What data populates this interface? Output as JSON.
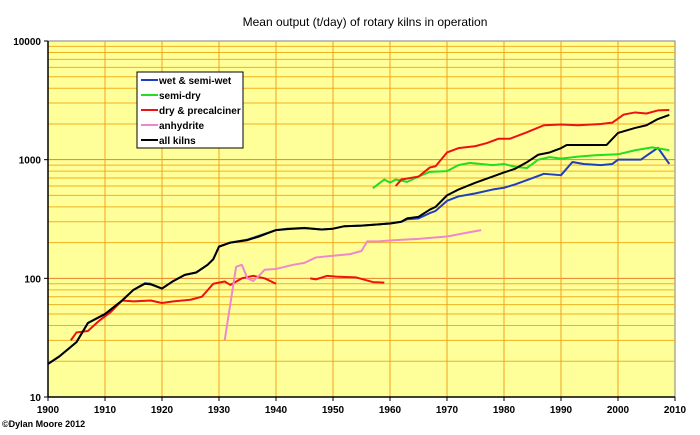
{
  "chart_data": {
    "type": "line",
    "title": "Mean output (t/day) of rotary kilns in operation",
    "xlabel": "",
    "ylabel": "",
    "xlim": [
      1900,
      2010
    ],
    "ylim": [
      10,
      10000
    ],
    "yscale": "log",
    "xticks": [
      "1900",
      "1910",
      "1920",
      "1930",
      "1940",
      "1950",
      "1960",
      "1970",
      "1980",
      "1990",
      "2000",
      "2010"
    ],
    "yticks": [
      "10",
      "100",
      "1000",
      "10000"
    ],
    "grid": true,
    "legend_position": "upper-left inside",
    "background": "#ffff99",
    "series": [
      {
        "name": "wet & semi-wet",
        "color": "#1f3fbf",
        "points": [
          [
            1900,
            19
          ],
          [
            1902,
            22
          ],
          [
            1905,
            29
          ],
          [
            1907,
            42
          ],
          [
            1910,
            50
          ],
          [
            1913,
            65
          ],
          [
            1915,
            80
          ],
          [
            1917,
            91
          ],
          [
            1918,
            90
          ],
          [
            1920,
            82
          ],
          [
            1922,
            95
          ],
          [
            1924,
            107
          ],
          [
            1926,
            112
          ],
          [
            1928,
            130
          ],
          [
            1929,
            145
          ],
          [
            1930,
            185
          ],
          [
            1932,
            200
          ],
          [
            1935,
            212
          ],
          [
            1937,
            228
          ],
          [
            1940,
            255
          ],
          [
            1942,
            262
          ],
          [
            1945,
            266
          ],
          [
            1948,
            258
          ],
          [
            1950,
            262
          ],
          [
            1952,
            275
          ],
          [
            1955,
            278
          ],
          [
            1958,
            285
          ],
          [
            1960,
            290
          ],
          [
            1962,
            300
          ],
          [
            1963,
            315
          ],
          [
            1965,
            320
          ],
          [
            1967,
            355
          ],
          [
            1968,
            370
          ],
          [
            1970,
            450
          ],
          [
            1972,
            490
          ],
          [
            1975,
            520
          ],
          [
            1978,
            560
          ],
          [
            1980,
            580
          ],
          [
            1982,
            620
          ],
          [
            1985,
            700
          ],
          [
            1987,
            760
          ],
          [
            1990,
            740
          ],
          [
            1992,
            955
          ],
          [
            1994,
            920
          ],
          [
            1997,
            900
          ],
          [
            1999,
            920
          ],
          [
            2000,
            1000
          ],
          [
            2004,
            1000
          ],
          [
            2007,
            1260
          ],
          [
            2009,
            920
          ]
        ]
      },
      {
        "name": "semi-dry",
        "color": "#22dd22",
        "points": [
          [
            1957,
            575
          ],
          [
            1959,
            680
          ],
          [
            1960,
            640
          ],
          [
            1961,
            680
          ],
          [
            1963,
            650
          ],
          [
            1965,
            720
          ],
          [
            1967,
            790
          ],
          [
            1970,
            800
          ],
          [
            1972,
            900
          ],
          [
            1974,
            940
          ],
          [
            1976,
            920
          ],
          [
            1978,
            900
          ],
          [
            1980,
            920
          ],
          [
            1982,
            870
          ],
          [
            1984,
            850
          ],
          [
            1986,
            1000
          ],
          [
            1988,
            1050
          ],
          [
            1990,
            1020
          ],
          [
            1993,
            1060
          ],
          [
            1996,
            1090
          ],
          [
            2000,
            1110
          ],
          [
            2003,
            1200
          ],
          [
            2006,
            1270
          ],
          [
            2009,
            1200
          ]
        ]
      },
      {
        "name": "dry & precalciner",
        "color": "#ee1111",
        "segments": [
          [
            [
              1904,
              30
            ],
            [
              1905,
              35
            ],
            [
              1907,
              36
            ],
            [
              1909,
              44
            ],
            [
              1911,
              52
            ],
            [
              1913,
              65
            ],
            [
              1915,
              64
            ],
            [
              1918,
              65
            ],
            [
              1920,
              62
            ],
            [
              1922,
              64
            ],
            [
              1925,
              66
            ],
            [
              1927,
              70
            ],
            [
              1929,
              90
            ],
            [
              1931,
              94
            ],
            [
              1932,
              88
            ],
            [
              1934,
              100
            ],
            [
              1936,
              105
            ],
            [
              1938,
              100
            ],
            [
              1940,
              90
            ]
          ],
          [
            [
              1946,
              100
            ],
            [
              1947,
              98
            ],
            [
              1949,
              105
            ],
            [
              1951,
              103
            ],
            [
              1954,
              102
            ],
            [
              1957,
              93
            ],
            [
              1959,
              92
            ]
          ],
          [
            [
              1961,
              600
            ],
            [
              1962,
              680
            ],
            [
              1965,
              720
            ],
            [
              1967,
              860
            ],
            [
              1968,
              880
            ],
            [
              1970,
              1150
            ],
            [
              1972,
              1250
            ],
            [
              1975,
              1300
            ],
            [
              1977,
              1380
            ],
            [
              1979,
              1500
            ],
            [
              1981,
              1500
            ],
            [
              1984,
              1700
            ],
            [
              1987,
              1950
            ],
            [
              1990,
              1980
            ],
            [
              1993,
              1950
            ],
            [
              1997,
              2000
            ],
            [
              1999,
              2050
            ],
            [
              2001,
              2400
            ],
            [
              2003,
              2500
            ],
            [
              2005,
              2450
            ],
            [
              2007,
              2600
            ],
            [
              2009,
              2620
            ]
          ]
        ]
      },
      {
        "name": "anhydrite",
        "color": "#ee88cc",
        "points": [
          [
            1931,
            30
          ],
          [
            1933,
            125
          ],
          [
            1934,
            130
          ],
          [
            1935,
            100
          ],
          [
            1936,
            95
          ],
          [
            1937,
            105
          ],
          [
            1938,
            118
          ],
          [
            1940,
            120
          ],
          [
            1943,
            130
          ],
          [
            1945,
            135
          ],
          [
            1947,
            150
          ],
          [
            1950,
            155
          ],
          [
            1953,
            160
          ],
          [
            1955,
            170
          ],
          [
            1956,
            205
          ],
          [
            1958,
            205
          ],
          [
            1961,
            210
          ],
          [
            1965,
            215
          ],
          [
            1970,
            225
          ],
          [
            1973,
            240
          ],
          [
            1976,
            255
          ]
        ]
      },
      {
        "name": "all kilns",
        "color": "#000000",
        "points": [
          [
            1900,
            19
          ],
          [
            1902,
            22
          ],
          [
            1905,
            29
          ],
          [
            1907,
            42
          ],
          [
            1910,
            50
          ],
          [
            1913,
            65
          ],
          [
            1915,
            80
          ],
          [
            1917,
            90
          ],
          [
            1918,
            89
          ],
          [
            1920,
            82
          ],
          [
            1922,
            95
          ],
          [
            1924,
            107
          ],
          [
            1926,
            112
          ],
          [
            1928,
            130
          ],
          [
            1929,
            145
          ],
          [
            1930,
            185
          ],
          [
            1932,
            200
          ],
          [
            1935,
            210
          ],
          [
            1937,
            225
          ],
          [
            1940,
            255
          ],
          [
            1942,
            260
          ],
          [
            1945,
            265
          ],
          [
            1948,
            258
          ],
          [
            1950,
            262
          ],
          [
            1952,
            275
          ],
          [
            1955,
            278
          ],
          [
            1958,
            285
          ],
          [
            1960,
            290
          ],
          [
            1962,
            300
          ],
          [
            1963,
            320
          ],
          [
            1965,
            330
          ],
          [
            1967,
            380
          ],
          [
            1968,
            400
          ],
          [
            1970,
            500
          ],
          [
            1972,
            560
          ],
          [
            1975,
            640
          ],
          [
            1978,
            720
          ],
          [
            1980,
            780
          ],
          [
            1982,
            840
          ],
          [
            1984,
            950
          ],
          [
            1986,
            1100
          ],
          [
            1988,
            1150
          ],
          [
            1990,
            1250
          ],
          [
            1991,
            1330
          ],
          [
            1998,
            1330
          ],
          [
            2000,
            1680
          ],
          [
            2003,
            1850
          ],
          [
            2005,
            1950
          ],
          [
            2007,
            2200
          ],
          [
            2009,
            2380
          ]
        ]
      }
    ]
  },
  "copyright": "©Dylan Moore 2012"
}
